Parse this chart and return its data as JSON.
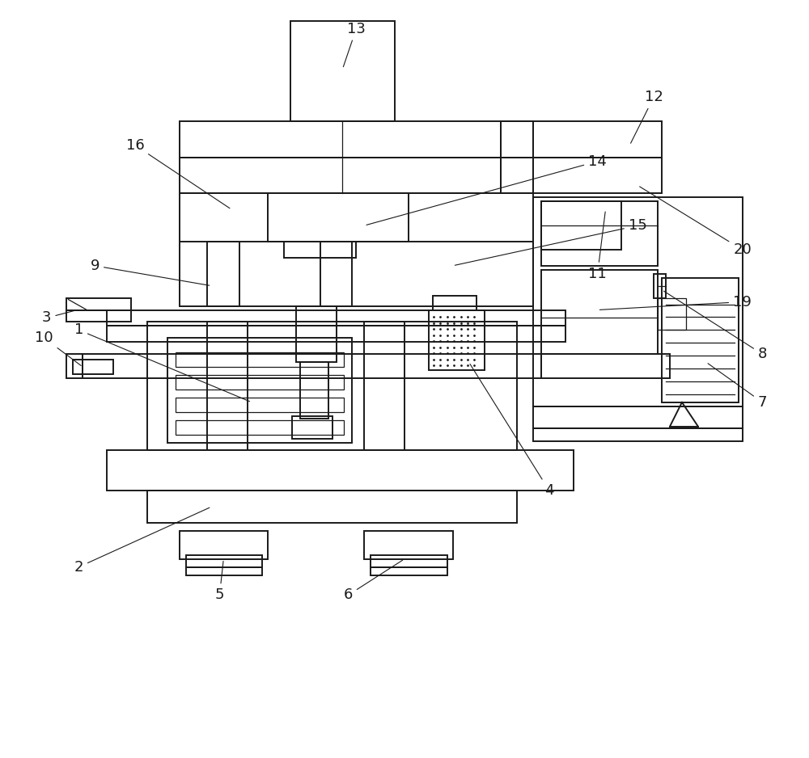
{
  "bg_color": "#ffffff",
  "line_color": "#1a1a1a",
  "lw": 1.4,
  "lw_thin": 0.9,
  "label_fs": 13,
  "leader_lw": 0.8,
  "fig_w": 10.0,
  "fig_h": 9.38,
  "dpi": 100
}
